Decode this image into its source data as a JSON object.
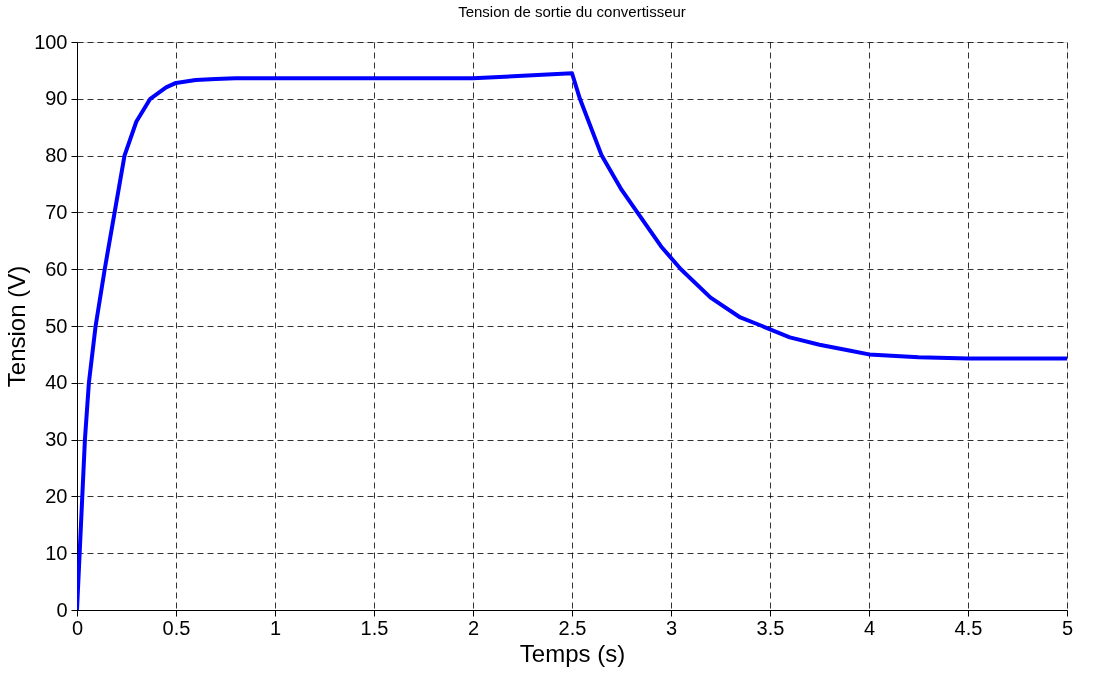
{
  "chart_data": {
    "type": "line",
    "title": "Tension de sortie du convertisseur",
    "xlabel": "Temps (s)",
    "ylabel": "Tension (V)",
    "series": [
      {
        "color": "#0000ff",
        "x": [
          0,
          0.02,
          0.04,
          0.06,
          0.094,
          0.14,
          0.19,
          0.24,
          0.3,
          0.37,
          0.45,
          0.5,
          0.6,
          0.7,
          0.8,
          1.0,
          1.5,
          2.0,
          2.5,
          2.54,
          2.65,
          2.75,
          2.83,
          2.95,
          3.05,
          3.2,
          3.35,
          3.46,
          3.6,
          3.75,
          3.9,
          4.0,
          4.25,
          4.5,
          4.75,
          5.0
        ],
        "values": [
          0,
          15,
          30,
          40,
          50,
          60,
          70,
          80,
          86,
          90,
          92,
          92.8,
          93.3,
          93.5,
          93.6,
          93.6,
          93.6,
          93.6,
          94.5,
          90,
          80,
          74,
          70,
          64,
          60,
          55,
          51.5,
          50,
          48,
          46.7,
          45.7,
          45,
          44.5,
          44.3,
          44.3,
          44.3
        ]
      }
    ],
    "xlim": [
      0,
      5
    ],
    "xticks": [
      0,
      0.5,
      1,
      1.5,
      2,
      2.5,
      3,
      3.5,
      4,
      4.5,
      5
    ],
    "ylim": [
      0,
      100
    ],
    "yticks": [
      0,
      10,
      20,
      30,
      40,
      50,
      60,
      70,
      80,
      90,
      100
    ],
    "grid": true,
    "line_style": "solid",
    "marker": "none"
  }
}
